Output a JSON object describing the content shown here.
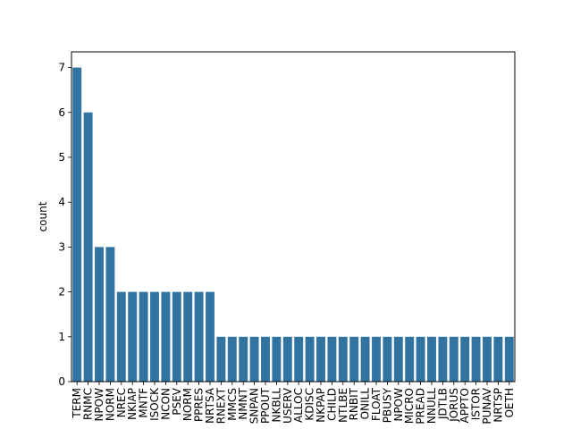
{
  "chart_data": {
    "type": "bar",
    "title": "",
    "xlabel": "",
    "ylabel": "count",
    "ylim": [
      0,
      7.35
    ],
    "yticks": [
      0,
      1,
      2,
      3,
      4,
      5,
      6,
      7
    ],
    "grid": false,
    "bar_color": "#3274a1",
    "categories": [
      "TERM",
      "RNMC",
      "NPOW",
      "NORM",
      "NREC",
      "NKIAP",
      "MNTF",
      "ISOCK",
      "NCON",
      "PSEV",
      "NORM",
      "PPRES",
      "NRTSA",
      "RNEXT",
      "MMCS",
      "NMNT",
      "SNPAN",
      "PPOUT",
      "NKBLL",
      "USERV",
      "ALLOC",
      "KDISC",
      "NKPAP",
      "CHILD",
      "NTLBE",
      "RNBIT",
      "ONILL",
      "FLOAT",
      "PBUSY",
      "NPOW",
      "MICRO",
      "PREAD",
      "NNULL",
      "JDTLB",
      "JORUS",
      "APPTO",
      "ISTOR",
      "PUNAV",
      "NRTSP",
      "OETH"
    ],
    "values": [
      7,
      6,
      3,
      3,
      2,
      2,
      2,
      2,
      2,
      2,
      2,
      2,
      2,
      1,
      1,
      1,
      1,
      1,
      1,
      1,
      1,
      1,
      1,
      1,
      1,
      1,
      1,
      1,
      1,
      1,
      1,
      1,
      1,
      1,
      1,
      1,
      1,
      1,
      1,
      1
    ]
  }
}
